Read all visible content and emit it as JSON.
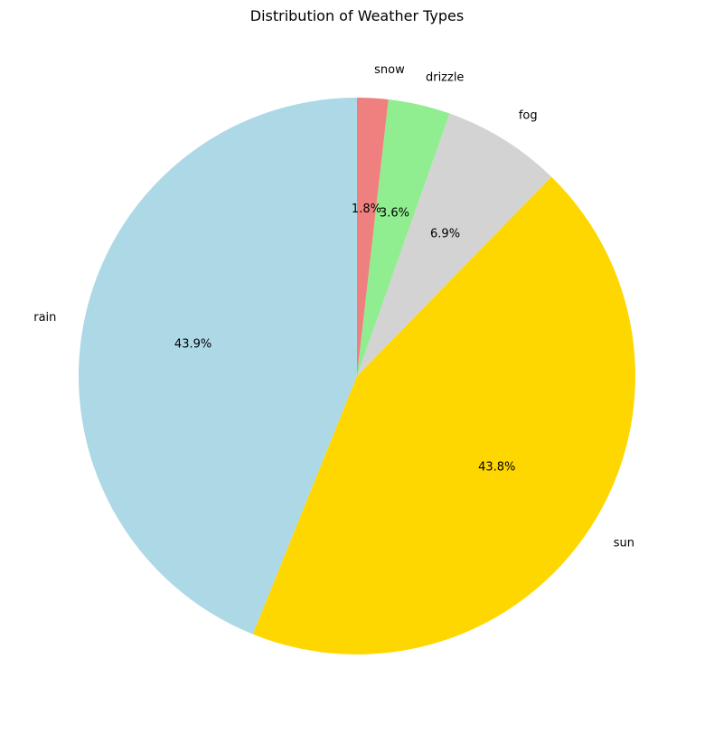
{
  "chart_data": {
    "type": "pie",
    "title": "Distribution of Weather Types",
    "start_angle_deg": 90,
    "direction": "counterclockwise",
    "slices": [
      {
        "label": "rain",
        "percent_label": "43.9%",
        "value": 43.9,
        "color": "#add8e6"
      },
      {
        "label": "sun",
        "percent_label": "43.8%",
        "value": 43.8,
        "color": "#ffd700"
      },
      {
        "label": "fog",
        "percent_label": "6.9%",
        "value": 6.9,
        "color": "#d3d3d3"
      },
      {
        "label": "drizzle",
        "percent_label": "3.6%",
        "value": 3.6,
        "color": "#90ee90"
      },
      {
        "label": "snow",
        "percent_label": "1.8%",
        "value": 1.8,
        "color": "#f08080"
      }
    ]
  }
}
